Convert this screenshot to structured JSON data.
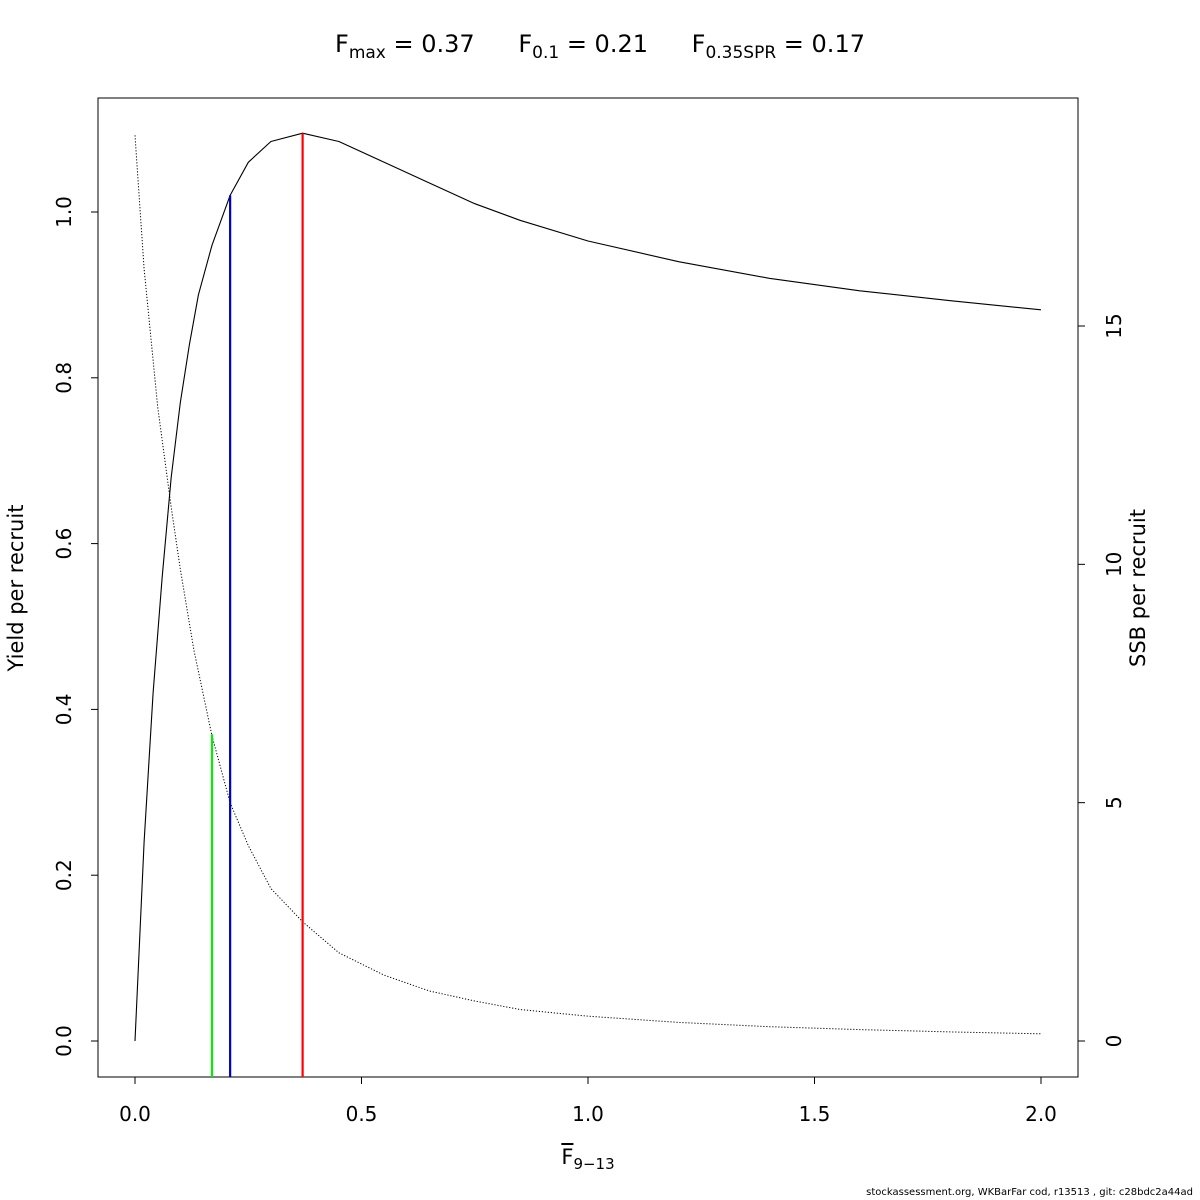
{
  "title": {
    "items": [
      {
        "sym": "F",
        "sub": "max",
        "rest": " = 0.37"
      },
      {
        "sym": "F",
        "sub": "0.1",
        "rest": " = 0.21"
      },
      {
        "sym": "F",
        "sub": "0.35SPR",
        "rest": " = 0.17"
      }
    ]
  },
  "xlabel": {
    "sym": "F",
    "sub": "9−13"
  },
  "footer": "stockassessment.org, WKBarFar  cod, r13513 , git: c28bdc2a44ad",
  "chart_data": {
    "type": "line",
    "xlabel": "F 9-13",
    "ylabel": "Yield per recruit",
    "y2label": "SSB per recruit",
    "xlim": [
      0.0,
      2.0
    ],
    "ylim": [
      0.0,
      1.1
    ],
    "y2lim": [
      0,
      19.1
    ],
    "x_ticks": [
      "0.0",
      "0.5",
      "1.0",
      "1.5",
      "2.0"
    ],
    "y_ticks": [
      "0.0",
      "0.2",
      "0.4",
      "0.6",
      "0.8",
      "1.0"
    ],
    "y2_ticks": [
      "0",
      "5",
      "10",
      "15"
    ],
    "grid": false,
    "series": [
      {
        "axis": "left",
        "style": "solid",
        "color": "#000000",
        "x": [
          0.0,
          0.02,
          0.04,
          0.06,
          0.08,
          0.1,
          0.12,
          0.14,
          0.17,
          0.21,
          0.25,
          0.3,
          0.37,
          0.45,
          0.55,
          0.65,
          0.75,
          0.85,
          1.0,
          1.2,
          1.4,
          1.6,
          1.8,
          2.0
        ],
        "y": [
          0.0,
          0.24,
          0.42,
          0.56,
          0.68,
          0.77,
          0.84,
          0.9,
          0.96,
          1.02,
          1.06,
          1.085,
          1.095,
          1.085,
          1.06,
          1.035,
          1.01,
          0.99,
          0.965,
          0.94,
          0.92,
          0.905,
          0.893,
          0.882
        ]
      },
      {
        "axis": "right",
        "style": "dotted",
        "color": "#000000",
        "x": [
          0.0,
          0.02,
          0.05,
          0.08,
          0.1,
          0.13,
          0.17,
          0.21,
          0.25,
          0.3,
          0.37,
          0.45,
          0.55,
          0.65,
          0.75,
          0.85,
          1.0,
          1.2,
          1.4,
          1.6,
          1.8,
          2.0
        ],
        "y": [
          19.0,
          16.2,
          13.3,
          11.2,
          9.9,
          8.2,
          6.4,
          5.0,
          4.1,
          3.2,
          2.5,
          1.85,
          1.38,
          1.05,
          0.84,
          0.66,
          0.52,
          0.39,
          0.3,
          0.24,
          0.19,
          0.15
        ]
      }
    ],
    "reference_lines": [
      {
        "name": "Fmax",
        "x": 0.37,
        "y_top": 1.095,
        "color": "#ff0000"
      },
      {
        "name": "F0.1",
        "x": 0.21,
        "y_top": 1.02,
        "color": "#0000cd"
      },
      {
        "name": "F0.35SPR",
        "x": 0.17,
        "y_top": 0.37,
        "color": "#00ee00"
      }
    ]
  }
}
